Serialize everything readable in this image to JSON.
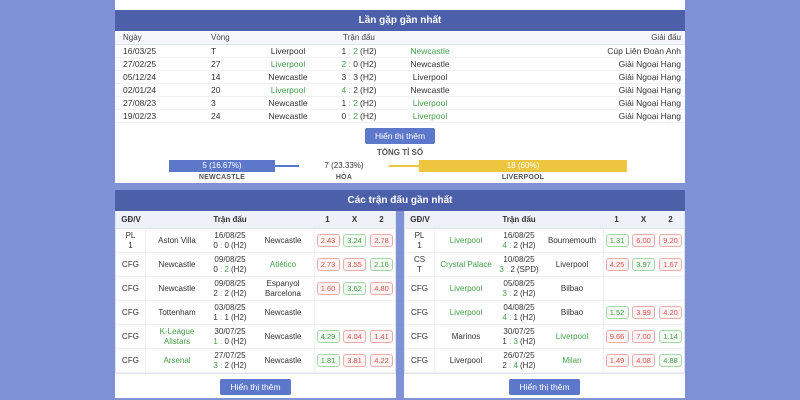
{
  "colors": {
    "page_bg": "#8092d6",
    "section_header_bg": "#4c5fa9",
    "button_bg": "#5d77ca",
    "newcastle_bar": "#5d77ca",
    "liverpool_bar": "#edc53f",
    "winner_green": "#43a047",
    "odds_lose_red": "#d9534f",
    "odds_win_green": "#43a047"
  },
  "h2h": {
    "title": "Lần gặp gần nhất",
    "columns": {
      "date": "Ngày",
      "round": "Vòng",
      "match": "Trận đấu",
      "league": "Giải đấu"
    },
    "rows": [
      {
        "date": "16/03/25",
        "round": "T",
        "home": "Liverpool",
        "home_cls": "",
        "s1": "1",
        "s1_cls": "",
        "s2": "2",
        "s2_cls": "win",
        "suffix": "(H2)",
        "away": "Newcastle",
        "away_cls": "win",
        "league": "Cúp Liên Đoàn Anh"
      },
      {
        "date": "27/02/25",
        "round": "27",
        "home": "Liverpool",
        "home_cls": "win",
        "s1": "2",
        "s1_cls": "win",
        "s2": "0",
        "s2_cls": "",
        "suffix": "(H2)",
        "away": "Newcastle",
        "away_cls": "",
        "league": "Giải Ngoại Hạng"
      },
      {
        "date": "05/12/24",
        "round": "14",
        "home": "Newcastle",
        "home_cls": "",
        "s1": "3",
        "s1_cls": "",
        "s2": "3",
        "s2_cls": "",
        "suffix": "(H2)",
        "away": "Liverpool",
        "away_cls": "",
        "league": "Giải Ngoại Hạng"
      },
      {
        "date": "02/01/24",
        "round": "20",
        "home": "Liverpool",
        "home_cls": "win",
        "s1": "4",
        "s1_cls": "win",
        "s2": "2",
        "s2_cls": "",
        "suffix": "(H2)",
        "away": "Newcastle",
        "away_cls": "",
        "league": "Giải Ngoại Hạng"
      },
      {
        "date": "27/08/23",
        "round": "3",
        "home": "Newcastle",
        "home_cls": "",
        "s1": "1",
        "s1_cls": "",
        "s2": "2",
        "s2_cls": "win",
        "suffix": "(H2)",
        "away": "Liverpool",
        "away_cls": "win",
        "league": "Giải Ngoại Hạng"
      },
      {
        "date": "19/02/23",
        "round": "24",
        "home": "Newcastle",
        "home_cls": "",
        "s1": "0",
        "s1_cls": "",
        "s2": "2",
        "s2_cls": "win",
        "suffix": "(H2)",
        "away": "Liverpool",
        "away_cls": "win",
        "league": "Giải Ngoại Hạng"
      }
    ],
    "show_more": "Hiển thị thêm",
    "total_label": "TỔNG TỈ SỐ",
    "summary": {
      "home_value": "5 (16.67%)",
      "home_label": "NEWCASTLE",
      "draw_value": "7 (23.33%)",
      "draw_label": "HÒA",
      "away_value": "18 (60%)",
      "away_label": "LIVERPOOL"
    }
  },
  "recent": {
    "title": "Các trận đấu gần nhất",
    "columns": {
      "comp": "GĐ/V",
      "match": "Trận đấu",
      "one": "1",
      "draw": "X",
      "two": "2"
    },
    "show_more": "Hiển thị thêm",
    "left_rows": [
      {
        "comp1": "PL",
        "comp2": "1",
        "home": "Aston Villa",
        "home_cls": "",
        "date": "16/08/25",
        "s1": "0",
        "s1_cls": "",
        "s2": "0",
        "s2_cls": "",
        "suffix": "(H2)",
        "away": "Newcastle",
        "away_cls": "",
        "odds": [
          {
            "v": "2.43",
            "cls": "lose"
          },
          {
            "v": "3.24",
            "cls": "win"
          },
          {
            "v": "2.78",
            "cls": "lose"
          }
        ]
      },
      {
        "comp1": "CFG",
        "comp2": "",
        "home": "Newcastle",
        "home_cls": "",
        "date": "09/08/25",
        "s1": "0",
        "s1_cls": "",
        "s2": "2",
        "s2_cls": "win",
        "suffix": "(H2)",
        "away": "Atlético",
        "away_cls": "win",
        "odds": [
          {
            "v": "2.73",
            "cls": "lose"
          },
          {
            "v": "3.55",
            "cls": "lose"
          },
          {
            "v": "2.16",
            "cls": "win"
          }
        ]
      },
      {
        "comp1": "CFG",
        "comp2": "",
        "home": "Newcastle",
        "home_cls": "",
        "date": "09/08/25",
        "s1": "2",
        "s1_cls": "",
        "s2": "2",
        "s2_cls": "",
        "suffix": "(H2)",
        "away": "Espanyol Barcelona",
        "away_cls": "",
        "odds": [
          {
            "v": "1.60",
            "cls": "lose"
          },
          {
            "v": "3.62",
            "cls": "win"
          },
          {
            "v": "4.80",
            "cls": "lose"
          }
        ]
      },
      {
        "comp1": "CFG",
        "comp2": "",
        "home": "Tottenham",
        "home_cls": "",
        "date": "03/08/25",
        "s1": "1",
        "s1_cls": "",
        "s2": "1",
        "s2_cls": "",
        "suffix": "(H2)",
        "away": "Newcastle",
        "away_cls": "",
        "odds": [
          {
            "v": "",
            "cls": "empty"
          },
          {
            "v": "",
            "cls": "empty"
          },
          {
            "v": "",
            "cls": "empty"
          }
        ]
      },
      {
        "comp1": "CFG",
        "comp2": "",
        "home": "K-League Allstars",
        "home_cls": "win",
        "date": "30/07/25",
        "s1": "1",
        "s1_cls": "win",
        "s2": "0",
        "s2_cls": "",
        "suffix": "(H2)",
        "away": "Newcastle",
        "away_cls": "",
        "odds": [
          {
            "v": "4.29",
            "cls": "win"
          },
          {
            "v": "4.04",
            "cls": "lose"
          },
          {
            "v": "1.41",
            "cls": "lose"
          }
        ]
      },
      {
        "comp1": "CFG",
        "comp2": "",
        "home": "Arsenal",
        "home_cls": "win",
        "date": "27/07/25",
        "s1": "3",
        "s1_cls": "win",
        "s2": "2",
        "s2_cls": "",
        "suffix": "(H2)",
        "away": "Newcastle",
        "away_cls": "",
        "odds": [
          {
            "v": "1.81",
            "cls": "win"
          },
          {
            "v": "3.81",
            "cls": "lose"
          },
          {
            "v": "4.22",
            "cls": "lose"
          }
        ]
      }
    ],
    "right_rows": [
      {
        "comp1": "PL",
        "comp2": "1",
        "home": "Liverpool",
        "home_cls": "win",
        "date": "16/08/25",
        "s1": "4",
        "s1_cls": "win",
        "s2": "2",
        "s2_cls": "",
        "suffix": "(H2)",
        "away": "Bournemouth",
        "away_cls": "",
        "odds": [
          {
            "v": "1.31",
            "cls": "win"
          },
          {
            "v": "6.00",
            "cls": "lose"
          },
          {
            "v": "9.20",
            "cls": "lose"
          }
        ]
      },
      {
        "comp1": "CS",
        "comp2": "T",
        "home": "Crystal Palace",
        "home_cls": "win",
        "date": "10/08/25",
        "s1": "3",
        "s1_cls": "win",
        "s2": "2",
        "s2_cls": "",
        "suffix": "(SPD)",
        "away": "Liverpool",
        "away_cls": "",
        "odds": [
          {
            "v": "4.25",
            "cls": "lose"
          },
          {
            "v": "3.97",
            "cls": "win"
          },
          {
            "v": "1.67",
            "cls": "lose"
          }
        ]
      },
      {
        "comp1": "CFG",
        "comp2": "",
        "home": "Liverpool",
        "home_cls": "win",
        "date": "05/08/25",
        "s1": "3",
        "s1_cls": "win",
        "s2": "2",
        "s2_cls": "",
        "suffix": "(H2)",
        "away": "Bilbao",
        "away_cls": "",
        "odds": [
          {
            "v": "",
            "cls": "empty"
          },
          {
            "v": "",
            "cls": "empty"
          },
          {
            "v": "",
            "cls": "empty"
          }
        ]
      },
      {
        "comp1": "CFG",
        "comp2": "",
        "home": "Liverpool",
        "home_cls": "win",
        "date": "04/08/25",
        "s1": "4",
        "s1_cls": "win",
        "s2": "1",
        "s2_cls": "",
        "suffix": "(H2)",
        "away": "Bilbao",
        "away_cls": "",
        "odds": [
          {
            "v": "1.52",
            "cls": "win"
          },
          {
            "v": "3.99",
            "cls": "lose"
          },
          {
            "v": "4.20",
            "cls": "lose"
          }
        ]
      },
      {
        "comp1": "CFG",
        "comp2": "",
        "home": "Marinos",
        "home_cls": "",
        "date": "30/07/25",
        "s1": "1",
        "s1_cls": "",
        "s2": "3",
        "s2_cls": "win",
        "suffix": "(H2)",
        "away": "Liverpool",
        "away_cls": "win",
        "odds": [
          {
            "v": "9.66",
            "cls": "lose"
          },
          {
            "v": "7.00",
            "cls": "lose"
          },
          {
            "v": "1.14",
            "cls": "win"
          }
        ]
      },
      {
        "comp1": "CFG",
        "comp2": "",
        "home": "Liverpool",
        "home_cls": "",
        "date": "26/07/25",
        "s1": "2",
        "s1_cls": "",
        "s2": "4",
        "s2_cls": "win",
        "suffix": "(H2)",
        "away": "Milan",
        "away_cls": "win",
        "odds": [
          {
            "v": "1.49",
            "cls": "lose"
          },
          {
            "v": "4.08",
            "cls": "lose"
          },
          {
            "v": "4.88",
            "cls": "win"
          }
        ]
      }
    ]
  }
}
